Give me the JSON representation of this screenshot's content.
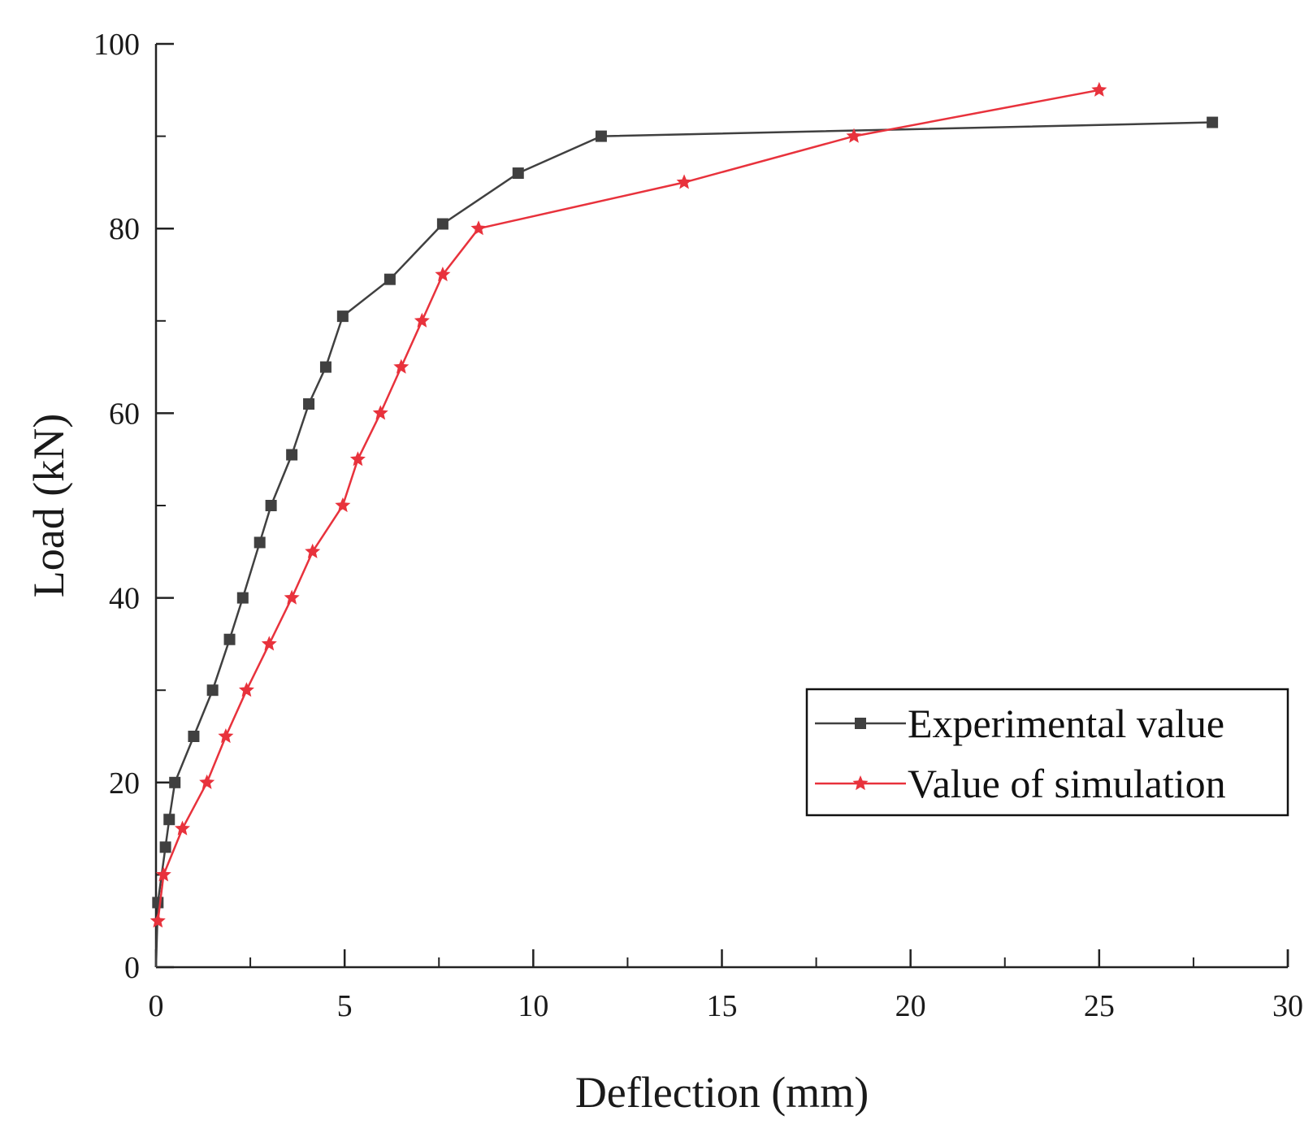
{
  "chart_data": {
    "type": "line",
    "title": "",
    "xlabel": "Deflection (mm)",
    "ylabel": "Load (kN)",
    "xlim": [
      0,
      30
    ],
    "ylim": [
      0,
      100
    ],
    "xticks": [
      0,
      5,
      10,
      15,
      20,
      25,
      30
    ],
    "xtick_labels": [
      "0",
      "5",
      "10",
      "15",
      "20",
      "25",
      "30"
    ],
    "yticks": [
      0,
      20,
      40,
      60,
      80,
      100
    ],
    "ytick_labels": [
      "0",
      "20",
      "40",
      "60",
      "80",
      "100"
    ],
    "grid": false,
    "legend_position": "lower-right",
    "series": [
      {
        "name": "Experimental value",
        "color": "#404040",
        "marker": "square",
        "x": [
          0,
          0.05,
          0.25,
          0.35,
          0.5,
          1.0,
          1.5,
          1.95,
          2.3,
          2.75,
          3.05,
          3.6,
          4.05,
          4.5,
          4.95,
          6.2,
          7.6,
          9.6,
          11.8,
          28.0
        ],
        "y": [
          0,
          7,
          13,
          16,
          20,
          25,
          30,
          35.5,
          40,
          46,
          50,
          55.5,
          61,
          65,
          70.5,
          74.5,
          80.5,
          86,
          90,
          91.5
        ]
      },
      {
        "name": "Value of simulation",
        "color": "#e8323c",
        "marker": "star",
        "x": [
          0.05,
          0.2,
          0.7,
          1.35,
          1.85,
          2.4,
          3.0,
          3.6,
          4.15,
          4.95,
          5.35,
          5.95,
          6.5,
          7.05,
          7.6,
          8.55,
          14.0,
          18.5,
          25.0
        ],
        "y": [
          5,
          10,
          15,
          20,
          25,
          30,
          35,
          40,
          45,
          50,
          55,
          60,
          65,
          70,
          75,
          80,
          85,
          90,
          95
        ]
      }
    ]
  }
}
